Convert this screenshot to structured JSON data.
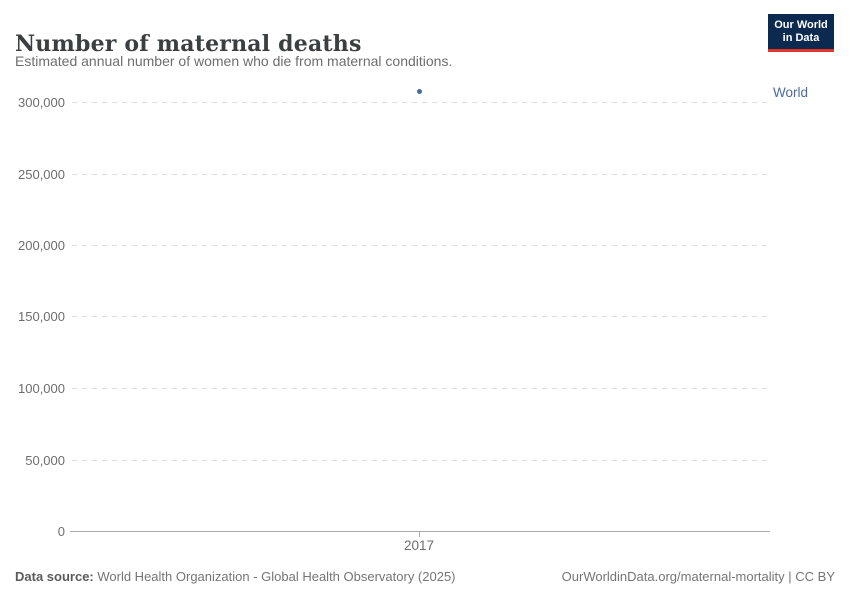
{
  "header": {
    "title": "Number of maternal deaths",
    "subtitle": "Estimated annual number of women who die from maternal conditions.",
    "logo": {
      "line1": "Our World",
      "line2": "in Data",
      "bg_color": "#0c2a50",
      "accent_color": "#e0362c"
    }
  },
  "chart_data": {
    "type": "scatter",
    "title": "Number of maternal deaths",
    "subtitle": "Estimated annual number of women who die from maternal conditions.",
    "series": [
      {
        "name": "World",
        "color": "#4C6A9C",
        "x": [
          2017
        ],
        "values": [
          307000
        ]
      }
    ],
    "xlabel": "",
    "ylabel": "",
    "x_ticks": [
      "2017"
    ],
    "y_tick_values": [
      300000,
      250000,
      200000,
      150000,
      100000,
      50000,
      0
    ],
    "ylim": [
      0,
      312000
    ],
    "grid": "horizontal-dashed",
    "legend_position": "right-of-last-point"
  },
  "y_axis": {
    "ticks": [
      {
        "label": "300,000",
        "value": 300000
      },
      {
        "label": "250,000",
        "value": 250000
      },
      {
        "label": "200,000",
        "value": 200000
      },
      {
        "label": "150,000",
        "value": 150000
      },
      {
        "label": "100,000",
        "value": 100000
      },
      {
        "label": "50,000",
        "value": 50000
      },
      {
        "label": "0",
        "value": 0
      }
    ]
  },
  "x_axis": {
    "ticks": [
      {
        "label": "2017",
        "value": 2017
      }
    ]
  },
  "legend": {
    "label": "World",
    "color": "#4C6A9C"
  },
  "footer": {
    "source_label": "Data source:",
    "source_text": " World Health Organization - Global Health Observatory (2025)",
    "credit": "OurWorldinData.org/maternal-mortality | CC BY"
  }
}
